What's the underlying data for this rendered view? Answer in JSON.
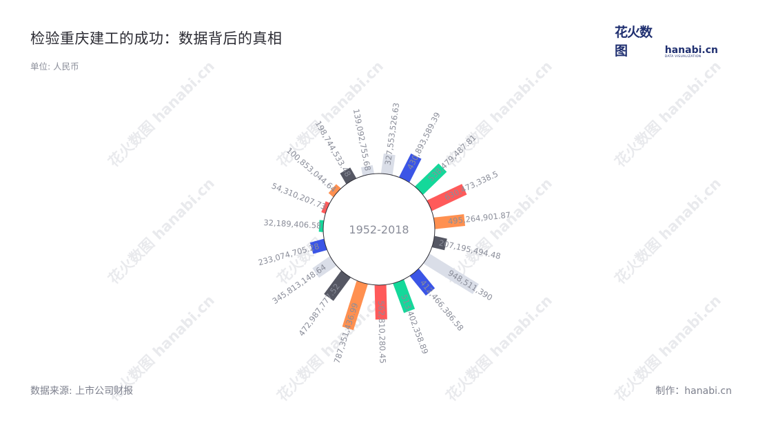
{
  "title": "检验重庆建工的成功：数据背后的真相",
  "unit_label": "单位: 人民币",
  "source": "数据来源: 上市公司财报",
  "credit": "制作：hanabi.cn",
  "logo": {
    "cn": "花火数图",
    "en_word": "hanabi.cn",
    "en_tag": "DATA VISUALIZATION"
  },
  "watermark_text": "花火数图 hanabi.cn",
  "colors": [
    "#dadee8",
    "#3b55e6",
    "#14d89a",
    "#ff5a5a",
    "#ff9050",
    "#555763"
  ],
  "chart_data": {
    "type": "bar",
    "layout": "polar",
    "center_label": "1952-2018",
    "values": [
      327553526.63,
      430893589.39,
      538479487.81,
      630473338.5,
      495264901.87,
      207195494.48,
      948511390,
      412466386.58,
      513402358.89,
      562810280.45,
      787351436.99,
      472987777.52,
      345813148.64,
      233074705.28,
      32189406.58,
      54310207.73,
      100853044.64,
      198744533.48,
      139092755.68
    ],
    "labels": [
      "327,553,526.63",
      "430,893,589.39",
      "538,479,487.81",
      "630,473,338.5",
      "495,264,901.87",
      "207,195,494.48",
      "948,511,390",
      "412,466,386.58",
      "513,402,358.89",
      "562,810,280.45",
      "787,351,436.99",
      "472,987,777.52",
      "345,813,148.64",
      "233,074,705.28",
      "32,189,406.58",
      "54,310,207.73",
      "100,853,044.64",
      "198,744,533.48",
      "139,092,755.68"
    ]
  }
}
